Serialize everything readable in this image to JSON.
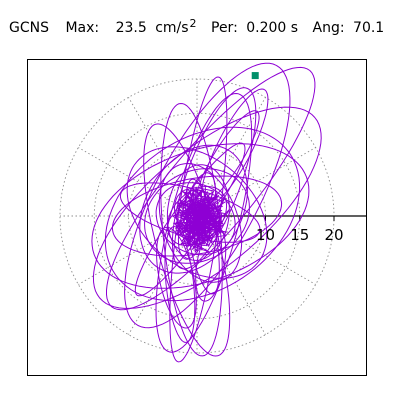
{
  "header": {
    "station": "GCNS",
    "max_label": "Max:",
    "max_value": "23.5",
    "max_unit": "cm/s",
    "max_unit_exp": "2",
    "per_label": "Per:",
    "per_value": "0.200 s",
    "ang_label": "Ang:",
    "ang_value": "70.1"
  },
  "colors": {
    "trace": "#8e00d4",
    "grid": "#8c8c8c",
    "axis": "#000000",
    "marker": "#00906a",
    "frame": "#000000"
  },
  "chart_data": {
    "type": "polar-orbit",
    "max_amplitude": 23.5,
    "radial_ticks": [
      10,
      15,
      20
    ],
    "tick_labels": [
      "10",
      "15",
      "20"
    ],
    "grid_rings": [
      5,
      10,
      15,
      20
    ],
    "grid_spokes_deg": [
      0,
      30,
      60,
      90,
      120,
      150,
      180,
      210,
      240,
      270,
      300,
      330
    ],
    "angle_deg": 70.1,
    "period_s": 0.2,
    "orbit_ellipses": [
      {
        "ax": 22.5,
        "ay": 6.2,
        "rot": 50,
        "cx": 2.0,
        "cy": 4.0
      },
      {
        "ax": 21.5,
        "ay": 7.5,
        "rot": 62,
        "cx": 1.5,
        "cy": 3.0
      },
      {
        "ax": 19.5,
        "ay": 5.0,
        "rot": 75,
        "cx": 1.0,
        "cy": -1.0
      },
      {
        "ax": 18.5,
        "ay": 4.2,
        "rot": 95,
        "cx": -0.8,
        "cy": -2.0
      },
      {
        "ax": 20.5,
        "ay": 8.5,
        "rot": 40,
        "cx": 1.5,
        "cy": 1.2
      },
      {
        "ax": 16.5,
        "ay": 9.5,
        "rot": 20,
        "cx": 0.5,
        "cy": 0.0
      },
      {
        "ax": 17.5,
        "ay": 4.5,
        "rot": 105,
        "cx": -1.5,
        "cy": -3.5
      },
      {
        "ax": 15.5,
        "ay": 11.0,
        "rot": 35,
        "cx": 0.8,
        "cy": 0.3
      },
      {
        "ax": 14.0,
        "ay": 4.0,
        "rot": 70,
        "cx": 2.5,
        "cy": 5.5
      },
      {
        "ax": 21.0,
        "ay": 3.0,
        "rot": 82,
        "cx": 0.2,
        "cy": -0.5
      },
      {
        "ax": 11.5,
        "ay": 8.0,
        "rot": 140,
        "cx": 0.0,
        "cy": 0.5
      },
      {
        "ax": 12.5,
        "ay": 5.5,
        "rot": 10,
        "cx": 0.0,
        "cy": 0.0
      },
      {
        "ax": 10.0,
        "ay": 7.0,
        "rot": 60,
        "cx": -0.5,
        "cy": 1.0
      },
      {
        "ax": 9.0,
        "ay": 5.5,
        "rot": 110,
        "cx": 0.5,
        "cy": -1.0
      },
      {
        "ax": 8.0,
        "ay": 6.5,
        "rot": 30,
        "cx": 0.0,
        "cy": 0.0
      },
      {
        "ax": 7.0,
        "ay": 4.5,
        "rot": 85,
        "cx": 0.2,
        "cy": 0.5
      },
      {
        "ax": 6.0,
        "ay": 5.0,
        "rot": 150,
        "cx": -0.2,
        "cy": -0.4
      },
      {
        "ax": 5.0,
        "ay": 3.5,
        "rot": 45,
        "cx": 0.0,
        "cy": 0.0
      },
      {
        "ax": 4.0,
        "ay": 3.0,
        "rot": 120,
        "cx": 0.0,
        "cy": 0.2
      },
      {
        "ax": 3.0,
        "ay": 2.5,
        "rot": 15,
        "cx": 0.0,
        "cy": 0.0
      },
      {
        "ax": 13.5,
        "ay": 2.5,
        "rot": 55,
        "cx": -1.0,
        "cy": -0.5
      },
      {
        "ax": 10.5,
        "ay": 3.5,
        "rot": 165,
        "cx": -1.0,
        "cy": 0.5
      },
      {
        "ax": 8.5,
        "ay": 2.0,
        "rot": 100,
        "cx": 0.8,
        "cy": -3.0
      },
      {
        "ax": 6.5,
        "ay": 2.2,
        "rot": 75,
        "cx": 0.0,
        "cy": 0.0
      }
    ],
    "extra_loops": [
      {
        "ax": 9.5,
        "ay": 2.5,
        "rot": 63,
        "cx": 5.5,
        "cy": 10.0
      },
      {
        "ax": 8.0,
        "ay": 2.0,
        "rot": 58,
        "cx": 4.5,
        "cy": 8.5
      },
      {
        "ax": 8.5,
        "ay": 2.0,
        "rot": 96,
        "cx": -2.5,
        "cy": -10.0
      },
      {
        "ax": 7.5,
        "ay": 2.5,
        "rot": 102,
        "cx": -3.0,
        "cy": -9.0
      },
      {
        "ax": 5.5,
        "ay": 2.0,
        "rot": 80,
        "cx": 2.0,
        "cy": -7.0
      }
    ],
    "end_point": {
      "x": 8.5,
      "y": 20.5
    }
  }
}
